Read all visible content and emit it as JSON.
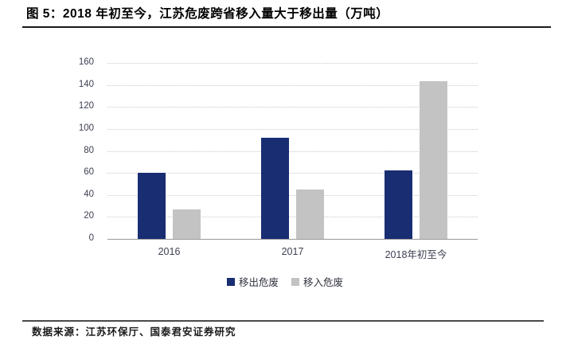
{
  "header": {
    "title": "图 5：2018 年初至今，江苏危废跨省移入量大于移出量（万吨）"
  },
  "chart_data": {
    "type": "bar",
    "title": "图 5：2018 年初至今，江苏危废跨省移入量大于移出量（万吨）",
    "categories": [
      "2016",
      "2017",
      "2018年初至今"
    ],
    "series": [
      {
        "name": "移出危废",
        "color": "#182d72",
        "values": [
          60,
          92,
          62
        ]
      },
      {
        "name": "移入危废",
        "color": "#c3c3c3",
        "values": [
          27,
          45,
          143
        ]
      }
    ],
    "xlabel": "",
    "ylabel": "",
    "ylim": [
      0,
      160
    ],
    "yticks": [
      0,
      20,
      40,
      60,
      80,
      100,
      120,
      140,
      160
    ],
    "grid": true,
    "legend_position": "bottom"
  },
  "footer": {
    "source": "数据来源：江苏环保厅、国泰君安证券研究"
  }
}
